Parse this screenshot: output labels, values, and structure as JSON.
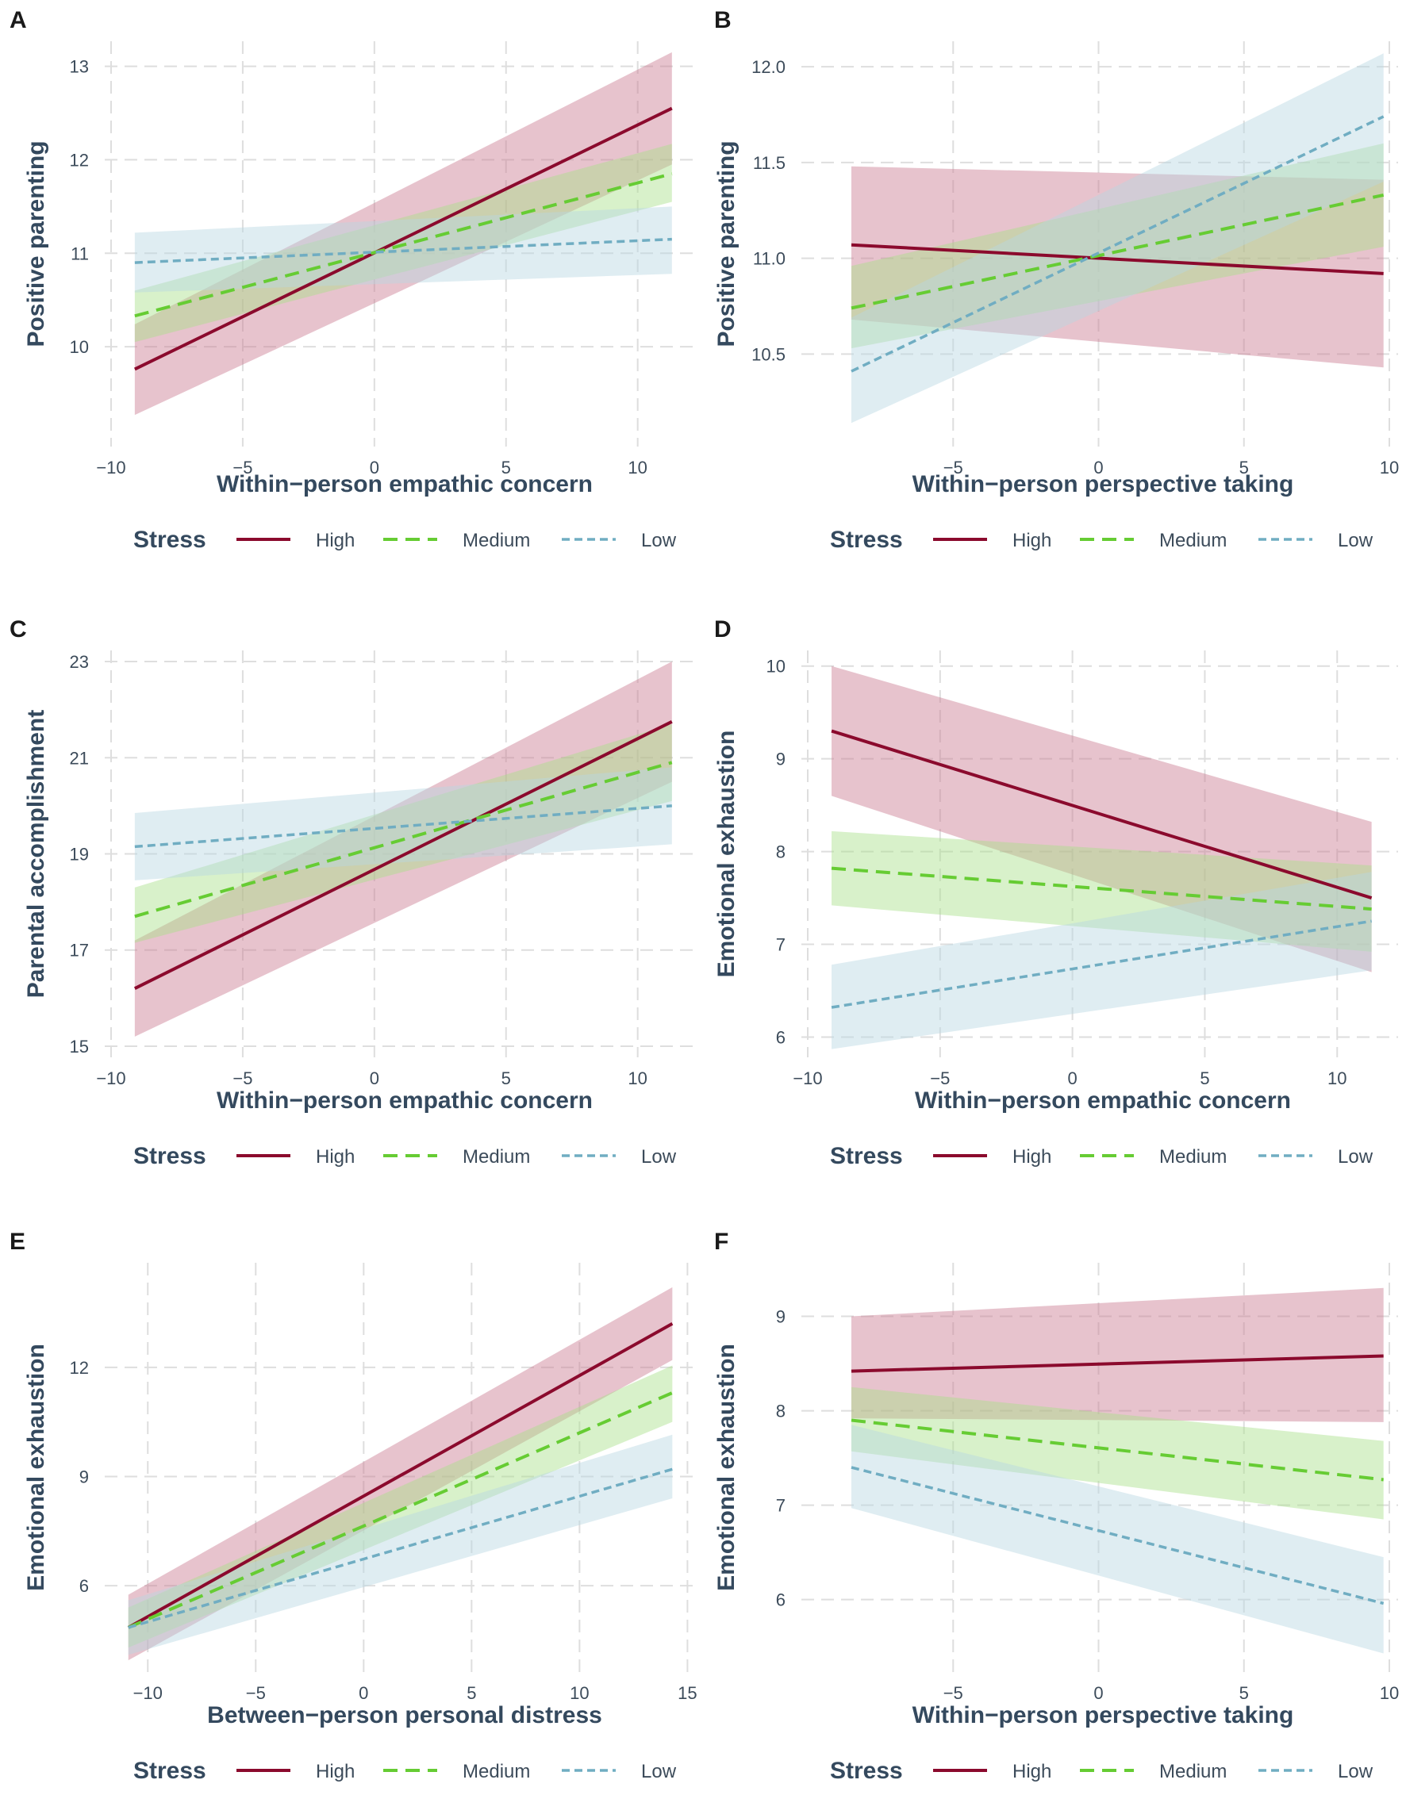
{
  "legend": {
    "title": "Stress",
    "levels": [
      {
        "key": "high",
        "label": "High",
        "color": "#8b0a2d",
        "band_color": "#c97a91"
      },
      {
        "key": "medium",
        "label": "Medium",
        "color": "#66cc33",
        "band_color": "#a8e08a"
      },
      {
        "key": "low",
        "label": "Low",
        "color": "#70adc2",
        "band_color": "#b9d8e3"
      }
    ]
  },
  "chart_data": [
    {
      "panel": "A",
      "type": "line",
      "title": "",
      "xlabel": "Within−person empathic concern",
      "ylabel": "Positive parenting",
      "xlim": [
        -10,
        12.3
      ],
      "ylim": [
        9.0,
        13.2
      ],
      "xticks": [
        -10,
        -5,
        0,
        5,
        10
      ],
      "xtick_labels": [
        "−10",
        "−5",
        "0",
        "5",
        "10"
      ],
      "yticks": [
        10,
        11,
        12,
        13
      ],
      "ytick_labels": [
        "10",
        "11",
        "12",
        "13"
      ],
      "x": [
        -9.1,
        11.3
      ],
      "series": [
        {
          "name": "High",
          "values": [
            9.76,
            12.55
          ],
          "lower": [
            9.27,
            11.95
          ],
          "upper": [
            10.24,
            13.15
          ]
        },
        {
          "name": "Medium",
          "values": [
            10.33,
            11.85
          ],
          "lower": [
            10.05,
            11.55
          ],
          "upper": [
            10.6,
            12.17
          ]
        },
        {
          "name": "Low",
          "values": [
            10.9,
            11.15
          ],
          "lower": [
            10.58,
            10.78
          ],
          "upper": [
            11.22,
            11.5
          ]
        }
      ]
    },
    {
      "panel": "B",
      "type": "line",
      "title": "",
      "xlabel": "Within−person perspective taking",
      "ylabel": "Positive parenting",
      "xlim": [
        -10,
        10.3
      ],
      "ylim": [
        10.05,
        12.1
      ],
      "xticks": [
        -5,
        0,
        5,
        10
      ],
      "xtick_labels": [
        "−5",
        "0",
        "5",
        "10"
      ],
      "yticks": [
        10.5,
        11.0,
        11.5,
        12.0
      ],
      "ytick_labels": [
        "10.5",
        "11.0",
        "11.5",
        "12.0"
      ],
      "x": [
        -8.5,
        9.8
      ],
      "series": [
        {
          "name": "High",
          "values": [
            11.07,
            10.92
          ],
          "lower": [
            10.68,
            10.43
          ],
          "upper": [
            11.48,
            11.41
          ]
        },
        {
          "name": "Medium",
          "values": [
            10.74,
            11.33
          ],
          "lower": [
            10.53,
            11.06
          ],
          "upper": [
            10.96,
            11.6
          ]
        },
        {
          "name": "Low",
          "values": [
            10.41,
            11.74
          ],
          "lower": [
            10.14,
            11.4
          ],
          "upper": [
            10.69,
            12.07
          ]
        }
      ]
    },
    {
      "panel": "C",
      "type": "line",
      "title": "",
      "xlabel": "Within−person empathic concern",
      "ylabel": "Parental accomplishment",
      "xlim": [
        -10,
        12.3
      ],
      "ylim": [
        14.9,
        23.1
      ],
      "xticks": [
        -10,
        -5,
        0,
        5,
        10
      ],
      "xtick_labels": [
        "−10",
        "−5",
        "0",
        "5",
        "10"
      ],
      "yticks": [
        15,
        17,
        19,
        21,
        23
      ],
      "ytick_labels": [
        "15",
        "17",
        "19",
        "21",
        "23"
      ],
      "x": [
        -9.1,
        11.3
      ],
      "series": [
        {
          "name": "High",
          "values": [
            16.2,
            21.75
          ],
          "lower": [
            15.2,
            20.5
          ],
          "upper": [
            17.2,
            23.0
          ]
        },
        {
          "name": "Medium",
          "values": [
            17.7,
            20.9
          ],
          "lower": [
            17.15,
            20.1
          ],
          "upper": [
            18.3,
            21.7
          ]
        },
        {
          "name": "Low",
          "values": [
            19.15,
            20.0
          ],
          "lower": [
            18.45,
            19.2
          ],
          "upper": [
            19.85,
            20.8
          ]
        }
      ]
    },
    {
      "panel": "D",
      "type": "line",
      "title": "",
      "xlabel": "Within−person empathic concern",
      "ylabel": "Emotional exhaustion",
      "xlim": [
        -10,
        12.3
      ],
      "ylim": [
        5.85,
        10.1
      ],
      "xticks": [
        -10,
        -5,
        0,
        5,
        10
      ],
      "xtick_labels": [
        "−10",
        "−5",
        "0",
        "5",
        "10"
      ],
      "yticks": [
        6,
        7,
        8,
        9,
        10
      ],
      "ytick_labels": [
        "6",
        "7",
        "8",
        "9",
        "10"
      ],
      "x": [
        -9.1,
        11.3
      ],
      "series": [
        {
          "name": "High",
          "values": [
            9.3,
            7.5
          ],
          "lower": [
            8.6,
            6.7
          ],
          "upper": [
            10.0,
            8.32
          ]
        },
        {
          "name": "Medium",
          "values": [
            7.82,
            7.38
          ],
          "lower": [
            7.42,
            6.92
          ],
          "upper": [
            8.22,
            7.85
          ]
        },
        {
          "name": "Low",
          "values": [
            6.32,
            7.25
          ],
          "lower": [
            5.87,
            6.72
          ],
          "upper": [
            6.78,
            7.78
          ]
        }
      ]
    },
    {
      "panel": "E",
      "type": "line",
      "title": "",
      "xlabel": "Between−person personal distress",
      "ylabel": "Emotional exhaustion",
      "xlim": [
        -11.7,
        15.5
      ],
      "ylim": [
        3.8,
        14.7
      ],
      "xticks": [
        -10,
        -5,
        0,
        5,
        10,
        15
      ],
      "xtick_labels": [
        "−10",
        "−5",
        "0",
        "5",
        "10",
        "15"
      ],
      "yticks": [
        6,
        9,
        12
      ],
      "ytick_labels": [
        "6",
        "9",
        "12"
      ],
      "x": [
        -10.9,
        14.3
      ],
      "series": [
        {
          "name": "High",
          "values": [
            4.85,
            13.2
          ],
          "lower": [
            3.95,
            12.2
          ],
          "upper": [
            5.75,
            14.2
          ]
        },
        {
          "name": "Medium",
          "values": [
            4.85,
            11.3
          ],
          "lower": [
            4.3,
            10.5
          ],
          "upper": [
            5.4,
            12.05
          ]
        },
        {
          "name": "Low",
          "values": [
            4.85,
            9.2
          ],
          "lower": [
            4.1,
            8.4
          ],
          "upper": [
            5.6,
            10.15
          ]
        }
      ]
    },
    {
      "panel": "F",
      "type": "line",
      "title": "",
      "xlabel": "Within−person perspective taking",
      "ylabel": "Emotional exhaustion",
      "xlim": [
        -10,
        10.3
      ],
      "ylim": [
        5.3,
        9.5
      ],
      "xticks": [
        -5,
        0,
        5,
        10
      ],
      "xtick_labels": [
        "−5",
        "0",
        "5",
        "10"
      ],
      "yticks": [
        6,
        7,
        8,
        9
      ],
      "ytick_labels": [
        "6",
        "7",
        "8",
        "9"
      ],
      "x": [
        -8.5,
        9.8
      ],
      "series": [
        {
          "name": "High",
          "values": [
            8.42,
            8.58
          ],
          "lower": [
            7.92,
            7.88
          ],
          "upper": [
            9.0,
            9.3
          ]
        },
        {
          "name": "Medium",
          "values": [
            7.9,
            7.27
          ],
          "lower": [
            7.57,
            6.85
          ],
          "upper": [
            8.25,
            7.68
          ]
        },
        {
          "name": "Low",
          "values": [
            7.4,
            5.96
          ],
          "lower": [
            6.97,
            5.43
          ],
          "upper": [
            7.85,
            6.45
          ]
        }
      ]
    }
  ]
}
